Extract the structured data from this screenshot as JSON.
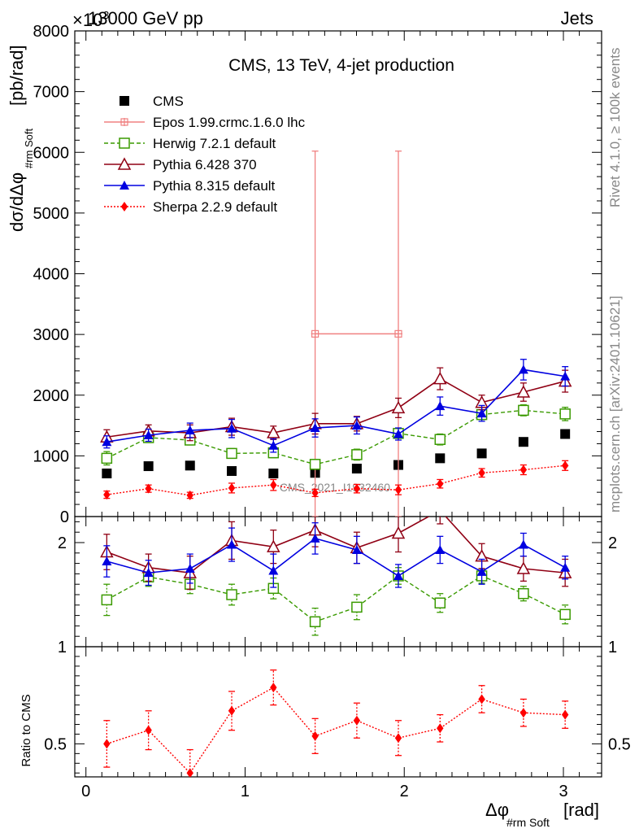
{
  "header": {
    "energy_label": "13000 GeV pp",
    "process_label": "Jets",
    "exponent_label": "×10",
    "exponent_power": "3"
  },
  "side_labels": {
    "rivet": "Rivet 4.1.0, ≥ 100k events",
    "mcplots": "mcplots.cern.ch [arXiv:2401.10621]"
  },
  "colors": {
    "cms": "#000000",
    "epos": "#f08080",
    "herwig": "#3a9a00",
    "pythia6": "#900014",
    "pythia8": "#0000e0",
    "sherpa": "#ff0000"
  },
  "chart_data": [
    {
      "type": "line",
      "panel": "main",
      "title": "CMS, 13 TeV, 4-jet production",
      "xlabel": "Δφ",
      "xlabel_sub": "#rm Soft",
      "xlabel_unit": "[rad]",
      "ylabel": "dσ/dΔφ",
      "ylabel_sub": "#rm Soft",
      "ylabel_unit": "[pb/rad]",
      "watermark": "CMS_2021_I1932460",
      "xlim": [
        -0.07,
        3.24
      ],
      "ylim": [
        0,
        8000
      ],
      "y_scale_factor": 1000,
      "yticks": [
        0,
        1000,
        2000,
        3000,
        4000,
        5000,
        6000,
        7000,
        8000
      ],
      "ytick_labels": [
        "0",
        "1000",
        "2000",
        "3000",
        "4000",
        "5000",
        "6000",
        "7000",
        "8000"
      ],
      "x": [
        0.131,
        0.393,
        0.654,
        0.916,
        1.178,
        1.44,
        1.702,
        1.963,
        2.225,
        2.487,
        2.749,
        3.011
      ],
      "legend": [
        "CMS",
        "Epos 1.99.crmc.1.6.0 lhc",
        "Herwig 7.2.1 default",
        "Pythia 6.428 370",
        "Pythia 8.315 default",
        "Sherpa 2.2.9 default"
      ],
      "series": [
        {
          "name": "CMS",
          "key": "cms",
          "values": [
            710,
            830,
            840,
            750,
            710,
            720,
            790,
            850,
            960,
            1040,
            1230,
            1360
          ]
        },
        {
          "name": "Epos 1.99.crmc.1.6.0 lhc",
          "key": "epos",
          "x": [
            1.44,
            1.963
          ],
          "values": [
            3010,
            3010
          ],
          "errors": [
            3010,
            3010
          ]
        },
        {
          "name": "Herwig 7.2.1 default",
          "key": "herwig",
          "values": [
            960,
            1300,
            1260,
            1040,
            1050,
            860,
            1020,
            1370,
            1270,
            1680,
            1750,
            1690
          ],
          "errors": [
            110,
            80,
            80,
            80,
            80,
            80,
            90,
            80,
            90,
            80,
            90,
            110
          ]
        },
        {
          "name": "Pythia 6.428 370",
          "key": "pythia6",
          "values": [
            1310,
            1410,
            1380,
            1480,
            1380,
            1530,
            1530,
            1790,
            2270,
            1880,
            2050,
            2230
          ],
          "errors": [
            120,
            100,
            130,
            140,
            110,
            170,
            120,
            160,
            180,
            120,
            150,
            180
          ]
        },
        {
          "name": "Pythia 8.315 default",
          "key": "pythia8",
          "values": [
            1230,
            1340,
            1420,
            1450,
            1170,
            1460,
            1500,
            1360,
            1820,
            1700,
            2420,
            2310
          ],
          "errors": [
            100,
            100,
            120,
            150,
            110,
            150,
            140,
            100,
            150,
            130,
            170,
            160
          ]
        },
        {
          "name": "Sherpa 2.2.9 default",
          "key": "sherpa",
          "values": [
            360,
            460,
            350,
            470,
            520,
            390,
            460,
            440,
            540,
            720,
            770,
            840
          ],
          "errors": [
            60,
            60,
            50,
            80,
            90,
            60,
            70,
            80,
            70,
            70,
            80,
            80
          ]
        }
      ]
    },
    {
      "type": "line",
      "panel": "ratio-upper",
      "ylabel": "Ratio to CMS",
      "ylim": [
        1,
        2.25
      ],
      "yticks": [
        1,
        2
      ],
      "ytick_labels": [
        "1",
        "2"
      ],
      "series": [
        {
          "name": "Herwig 7.2.1 default",
          "key": "herwig",
          "values": [
            1.45,
            1.67,
            1.6,
            1.5,
            1.56,
            1.24,
            1.38,
            1.68,
            1.42,
            1.68,
            1.51,
            1.31
          ],
          "errors": [
            0.15,
            0.09,
            0.09,
            0.1,
            0.1,
            0.13,
            0.12,
            0.08,
            0.09,
            0.07,
            0.07,
            0.09
          ]
        },
        {
          "name": "Pythia 6.428 370",
          "key": "pythia6",
          "values": [
            1.91,
            1.76,
            1.71,
            2.02,
            1.96,
            2.12,
            1.95,
            2.09,
            2.31,
            1.87,
            1.75,
            1.71
          ],
          "errors": [
            0.17,
            0.13,
            0.16,
            0.18,
            0.16,
            0.16,
            0.15,
            0.18,
            0.13,
            0.12,
            0.12,
            0.13
          ]
        },
        {
          "name": "Pythia 8.315 default",
          "key": "pythia8",
          "values": [
            1.82,
            1.71,
            1.75,
            1.98,
            1.73,
            2.04,
            1.93,
            1.68,
            1.93,
            1.72,
            1.98,
            1.76
          ],
          "errors": [
            0.15,
            0.12,
            0.14,
            0.16,
            0.16,
            0.15,
            0.13,
            0.11,
            0.13,
            0.12,
            0.11,
            0.11
          ]
        }
      ]
    },
    {
      "type": "line",
      "panel": "ratio-lower",
      "ylim": [
        0.33,
        1.0
      ],
      "yticks": [
        0.5,
        1
      ],
      "ytick_labels": [
        "0.5",
        "1"
      ],
      "xticks": [
        0,
        1,
        2,
        3
      ],
      "xtick_labels": [
        "0",
        "1",
        "2",
        "3"
      ],
      "series": [
        {
          "name": "Sherpa 2.2.9 default",
          "key": "sherpa",
          "values": [
            0.5,
            0.57,
            0.35,
            0.67,
            0.79,
            0.54,
            0.62,
            0.53,
            0.58,
            0.73,
            0.66,
            0.65
          ],
          "errors": [
            0.12,
            0.1,
            0.12,
            0.1,
            0.09,
            0.09,
            0.09,
            0.09,
            0.07,
            0.07,
            0.07,
            0.07
          ]
        }
      ]
    }
  ]
}
